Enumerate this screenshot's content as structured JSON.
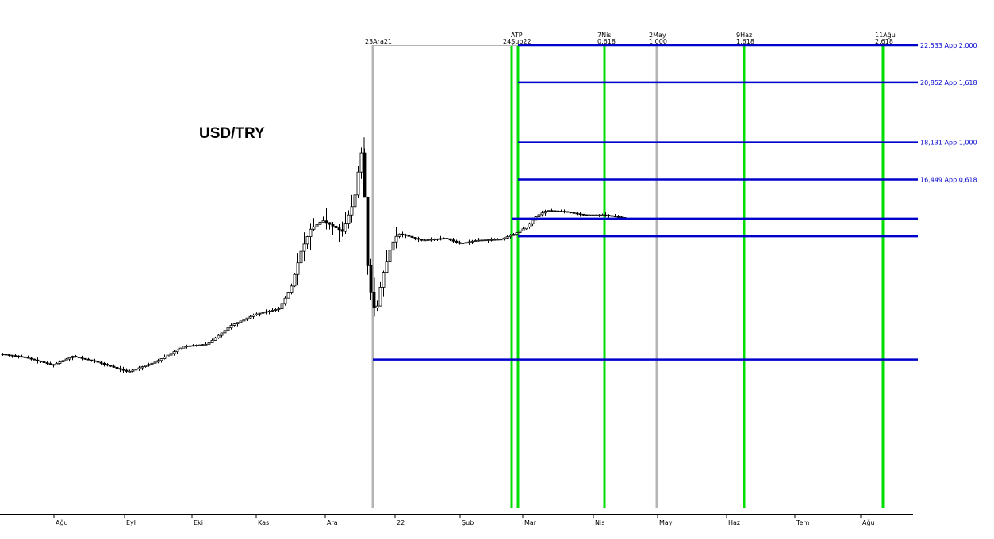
{
  "chart_data": {
    "type": "candlestick",
    "title": "USD/TRY",
    "x_tick_labels": [
      "Ağu",
      "Eyl",
      "Eki",
      "Kas",
      "Ara",
      "22",
      "Şub",
      "Mar",
      "Nis",
      "May",
      "Haz",
      "Tem",
      "Ağu"
    ],
    "price_levels": [
      {
        "label": "22,533 App 2,000",
        "value": 22.533
      },
      {
        "label": "20,852 App 1,618",
        "value": 20.852
      },
      {
        "label": "18,131 App 1,000",
        "value": 18.131
      },
      {
        "label": "16,449 App 0,618",
        "value": 16.449
      }
    ],
    "unlabeled_levels": [
      14.68,
      13.88,
      8.3
    ],
    "time_markers": [
      {
        "label": "23Ara21",
        "color": "#b4b4b4"
      },
      {
        "label": "ATP",
        "color": "#00dd00"
      },
      {
        "label": "24Şub22",
        "color": "#00dd00"
      },
      {
        "label": "7Nis",
        "sub": "0.618",
        "color": "#00dd00"
      },
      {
        "label": "2May",
        "sub": "1.000",
        "color": "#b4b4b4"
      },
      {
        "label": "9Haz",
        "sub": "1.618",
        "color": "#00dd00"
      },
      {
        "label": "11Ağu",
        "sub": "2.618",
        "color": "#00dd00"
      }
    ],
    "series_sketch": {
      "start": 8.55,
      "dec_2021_high": 18.36,
      "dec_2021_low": 10.25,
      "last": 14.69
    },
    "colors": {
      "levels": "#0000cc",
      "fib_time": "#00dd00",
      "grey_marker": "#b4b4b4"
    }
  }
}
